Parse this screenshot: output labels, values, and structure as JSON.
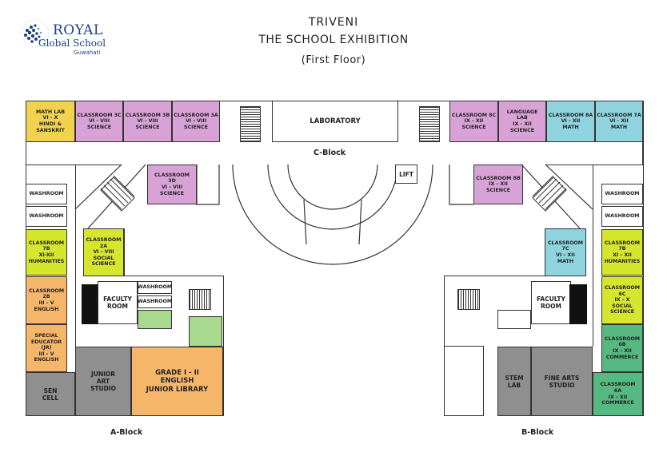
{
  "logo": {
    "name": "ROYAL",
    "subtitle": "Global School",
    "city": "Guwahati"
  },
  "header": {
    "title_line1": "TRIVENI",
    "title_line2": "THE SCHOOL EXHIBITION",
    "floor": "(First Floor)"
  },
  "blocks": {
    "c_block": "C-Block",
    "a_block": "A-Block",
    "b_block": "B-Block"
  },
  "rooms": {
    "math_lab": "MATH LAB\nVI - X\nHINDI &\nSANSKRIT",
    "classroom_3c": "CLASSROOM 3C\nVI - VIII\nSCIENCE",
    "classroom_3b": "CLASSROOM 3B\nVI - VIII\nSCIENCE",
    "classroom_3a": "CLASSROOM 3A\nVI - VIII\nSCIENCE",
    "laboratory": "LABORATORY",
    "classroom_8c": "CLASSROOM 8C\nIX - XII\nSCIENCE",
    "language_lab": "LANGUAGE\nLAB\nIX - XII\nSCIENCE",
    "classroom_8a": "CLASSROOM 8A\nVI - XII\nMATH",
    "classroom_7a": "CLASSROOM 7A\nVI - XII\nMATH",
    "classroom_3d": "CLASSROOM\n3D\nVI - VIII\nSCIENCE",
    "lift": "LIFT",
    "classroom_8b": "CLASSROOM 8B\nIX - XII\nSCIENCE",
    "washroom": "WASHROOM",
    "classroom_7b_left": "CLASSROOM\n7B\nXI-XII\nHUMANITIES",
    "classroom_2a": "CLASSROOM\n2A\nVI - VIII\nSOCIAL\nSCIENCE",
    "classroom_2b": "CLASSROOM\n2B\nIII - V\nENGLISH",
    "special_educator": "SPECIAL\nEDUCATOR (JR)\nIII - V\nENGLISH",
    "faculty_room": "FACULTY\nROOM",
    "sen_cell": "SEN\nCELL",
    "junior_art_studio": "JUNIOR\nART\nSTUDIO",
    "grade_junior_library": "GRADE I - II\nENGLISH\nJUNIOR LIBRARY",
    "classroom_7c": "CLASSROOM\n7C\nVI - XII\nMATH",
    "classroom_7b_right": "CLASSROOM\n7B\nXI - XII\nHUMANITIES",
    "classroom_6c": "CLASSROOM\n6C\nIX - X\nSOCIAL\nSCIENCE",
    "classroom_6b": "CLASSROOM\n6B\nIX - XII\nCOMMERCE",
    "classroom_6a": "CLASSROOM\n6A\nIX - XII\nCOMMERCE",
    "stem_lab": "STEM\nLAB",
    "fine_arts_studio": "FINE ARTS\nSTUDIO"
  },
  "colors": {
    "science_purple": "#d9a2d6",
    "math_cyan": "#8fd3df",
    "humanities_lime": "#d6e62c",
    "english_orange": "#f6b66a",
    "studio_grey": "#8f8f8f",
    "commerce_green": "#56b981",
    "math_lab_yellow": "#f0d24f"
  }
}
